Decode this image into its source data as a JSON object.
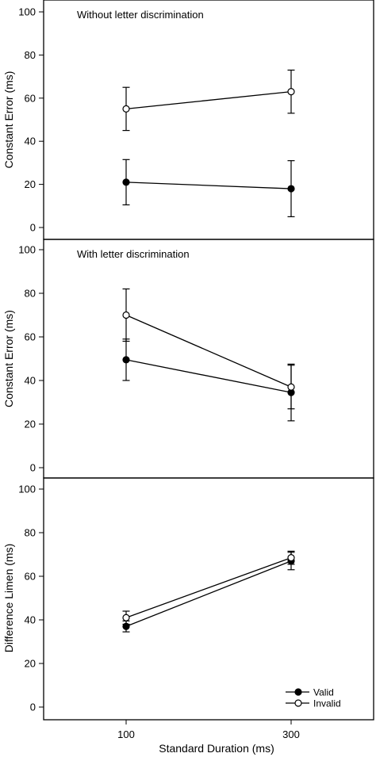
{
  "chart_data": [
    {
      "type": "line",
      "title": "Without letter discrimination",
      "ylabel": "Constant Error (ms)",
      "xlabel": "",
      "x": [
        100,
        300
      ],
      "xlim": [
        0,
        400
      ],
      "ylim": [
        0,
        100
      ],
      "yticks": [
        0,
        20,
        40,
        60,
        80,
        100
      ],
      "series": [
        {
          "name": "Valid",
          "marker": "filled-circle",
          "values": [
            21,
            18
          ],
          "errors": [
            10.5,
            13
          ]
        },
        {
          "name": "Invalid",
          "marker": "open-circle",
          "values": [
            55,
            63
          ],
          "errors": [
            10,
            10
          ]
        }
      ]
    },
    {
      "type": "line",
      "title": "With letter discrimination",
      "ylabel": "Constant Error (ms)",
      "xlabel": "",
      "x": [
        100,
        300
      ],
      "xlim": [
        0,
        400
      ],
      "ylim": [
        0,
        100
      ],
      "yticks": [
        0,
        20,
        40,
        60,
        80,
        100
      ],
      "series": [
        {
          "name": "Valid",
          "marker": "filled-circle",
          "values": [
            49.5,
            34.5
          ],
          "errors": [
            9.5,
            13
          ]
        },
        {
          "name": "Invalid",
          "marker": "open-circle",
          "values": [
            70,
            37
          ],
          "errors": [
            12,
            10
          ]
        }
      ]
    },
    {
      "type": "line",
      "title": "",
      "ylabel": "Difference Limen (ms)",
      "xlabel": "Standard Duration (ms)",
      "x": [
        100,
        300
      ],
      "xticks": [
        "100",
        "300"
      ],
      "xlim": [
        0,
        400
      ],
      "ylim": [
        0,
        100
      ],
      "yticks": [
        0,
        20,
        40,
        60,
        80,
        100
      ],
      "legend": "bottom-right",
      "series": [
        {
          "name": "Valid",
          "marker": "filled-circle",
          "values": [
            37,
            67
          ],
          "errors": [
            2.5,
            4
          ]
        },
        {
          "name": "Invalid",
          "marker": "open-circle",
          "values": [
            41,
            68.5
          ],
          "errors": [
            3,
            3
          ]
        }
      ]
    }
  ]
}
